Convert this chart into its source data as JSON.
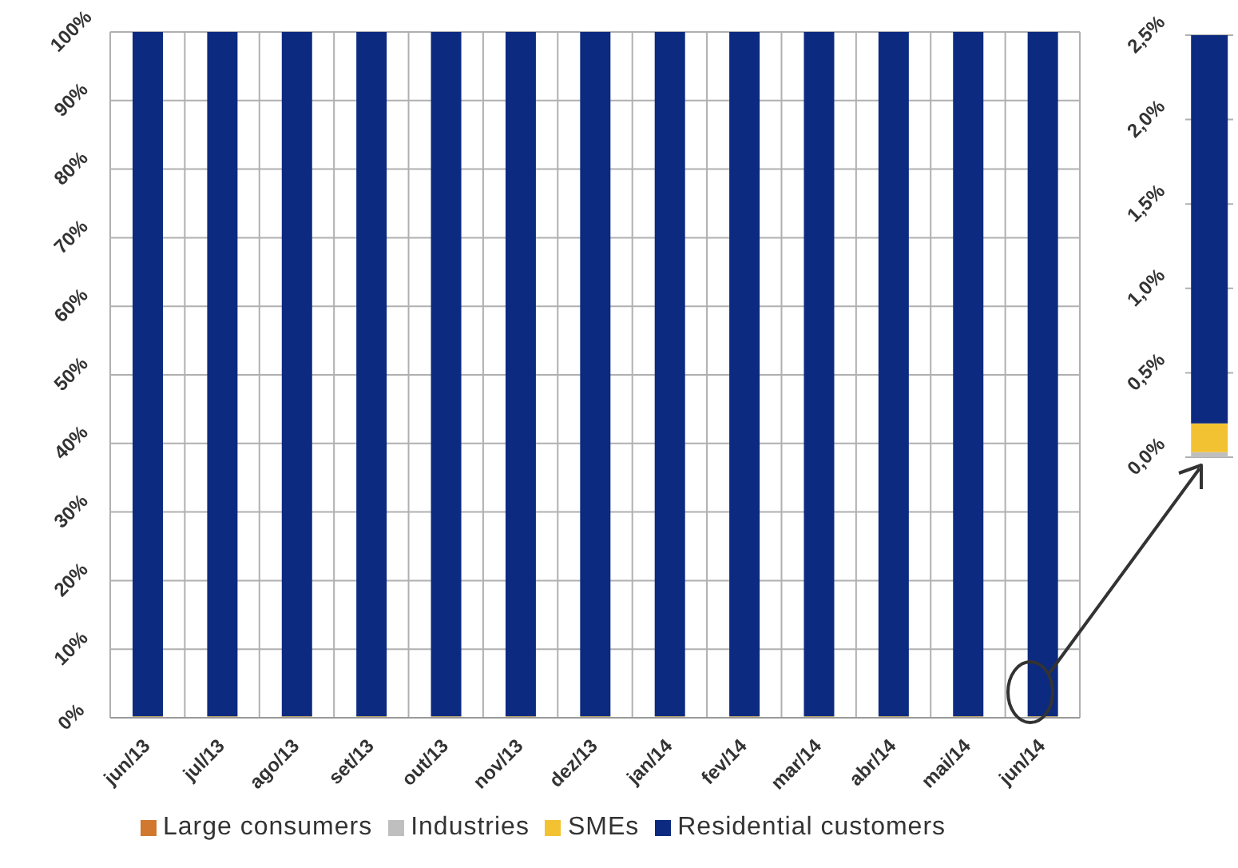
{
  "chart_data": [
    {
      "type": "bar",
      "stacked": true,
      "grid": true,
      "legend": "bottom",
      "categories": [
        "jun/13",
        "jul/13",
        "ago/13",
        "set/13",
        "out/13",
        "nov/13",
        "dez/13",
        "jan/14",
        "fev/14",
        "mar/14",
        "abr/14",
        "mai/14",
        "jun/14"
      ],
      "series": [
        {
          "name": "Large consumers",
          "color": "#d0782e",
          "values": [
            0,
            0,
            0,
            0,
            0,
            0,
            0,
            0,
            0,
            0,
            0,
            0,
            0
          ]
        },
        {
          "name": "Industries",
          "color": "#bfbfbf",
          "values": [
            0.03,
            0.03,
            0.03,
            0.03,
            0.03,
            0.03,
            0.03,
            0.03,
            0.03,
            0.03,
            0.03,
            0.03,
            0.03
          ]
        },
        {
          "name": "SMEs",
          "color": "#f2c232",
          "values": [
            0.17,
            0.17,
            0.17,
            0.17,
            0.17,
            0.17,
            0.17,
            0.17,
            0.17,
            0.17,
            0.17,
            0.17,
            0.17
          ]
        },
        {
          "name": "Residential customers",
          "color": "#0c2a80",
          "values": [
            99.8,
            99.8,
            99.8,
            99.8,
            99.8,
            99.8,
            99.8,
            99.8,
            99.8,
            99.8,
            99.8,
            99.8,
            99.8
          ]
        }
      ],
      "ylim": [
        0,
        100
      ],
      "yticks": [
        {
          "value": 0,
          "label": "0%"
        },
        {
          "value": 10,
          "label": "10%"
        },
        {
          "value": 20,
          "label": "20%"
        },
        {
          "value": 30,
          "label": "30%"
        },
        {
          "value": 40,
          "label": "40%"
        },
        {
          "value": 50,
          "label": "50%"
        },
        {
          "value": 60,
          "label": "60%"
        },
        {
          "value": 70,
          "label": "70%"
        },
        {
          "value": 80,
          "label": "80%"
        },
        {
          "value": 90,
          "label": "90%"
        },
        {
          "value": 100,
          "label": "100%"
        }
      ]
    },
    {
      "type": "bar",
      "stacked": true,
      "grid": "y",
      "tick_labels": "y",
      "categories": [
        null
      ],
      "series": [
        {
          "color": "#bfbfbf",
          "values": [
            0.03
          ]
        },
        {
          "color": "#f2c232",
          "values": [
            0.17
          ]
        },
        {
          "color": "#0c2a80",
          "values": [
            2.3
          ]
        }
      ],
      "ylim": [
        0,
        2.5
      ],
      "yticks": [
        {
          "value": 0,
          "label": "0,0%"
        },
        {
          "value": 0.5,
          "label": "0,5%"
        },
        {
          "value": 1,
          "label": "1,0%"
        },
        {
          "value": 1.5,
          "label": "1,5%"
        },
        {
          "value": 2,
          "label": "2,0%"
        },
        {
          "value": 2.5,
          "label": "2,5%"
        }
      ]
    }
  ]
}
